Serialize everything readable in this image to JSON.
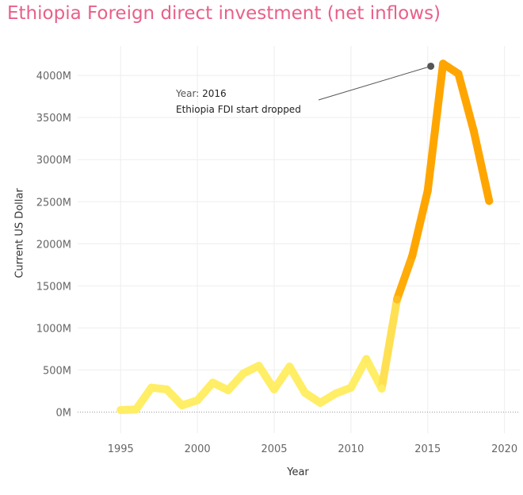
{
  "chart_data": {
    "type": "line",
    "title": "Ethiopia Foreign direct investment (net inflows)",
    "xlabel": "Year",
    "ylabel": "Current US Dollar",
    "x_ticks": [
      "1995",
      "2000",
      "2005",
      "2010",
      "2015",
      "2020"
    ],
    "y_ticks": [
      "0M",
      "500M",
      "1000M",
      "1500M",
      "2000M",
      "2500M",
      "3000M",
      "3500M",
      "4000M"
    ],
    "xlim": [
      1992.2,
      2021
    ],
    "ylim": [
      -250,
      4350
    ],
    "grid": true,
    "x": [
      1995,
      1996,
      1997,
      1998,
      1999,
      2000,
      2001,
      2002,
      2003,
      2004,
      2005,
      2006,
      2007,
      2008,
      2009,
      2010,
      2011,
      2012,
      2013,
      2014,
      2015,
      2016,
      2017,
      2018,
      2019
    ],
    "values": [
      25,
      30,
      290,
      270,
      80,
      140,
      350,
      260,
      460,
      550,
      270,
      540,
      230,
      110,
      220,
      290,
      630,
      280,
      1340,
      1860,
      2630,
      4140,
      4020,
      3340,
      2510
    ],
    "color_scale": [
      "#ffee66",
      "#ffa500"
    ],
    "annotation": {
      "year_label": "Year:",
      "year": "2016",
      "text": "Ethiopia FDI start dropped",
      "point": [
        2015.2,
        4110
      ]
    }
  }
}
